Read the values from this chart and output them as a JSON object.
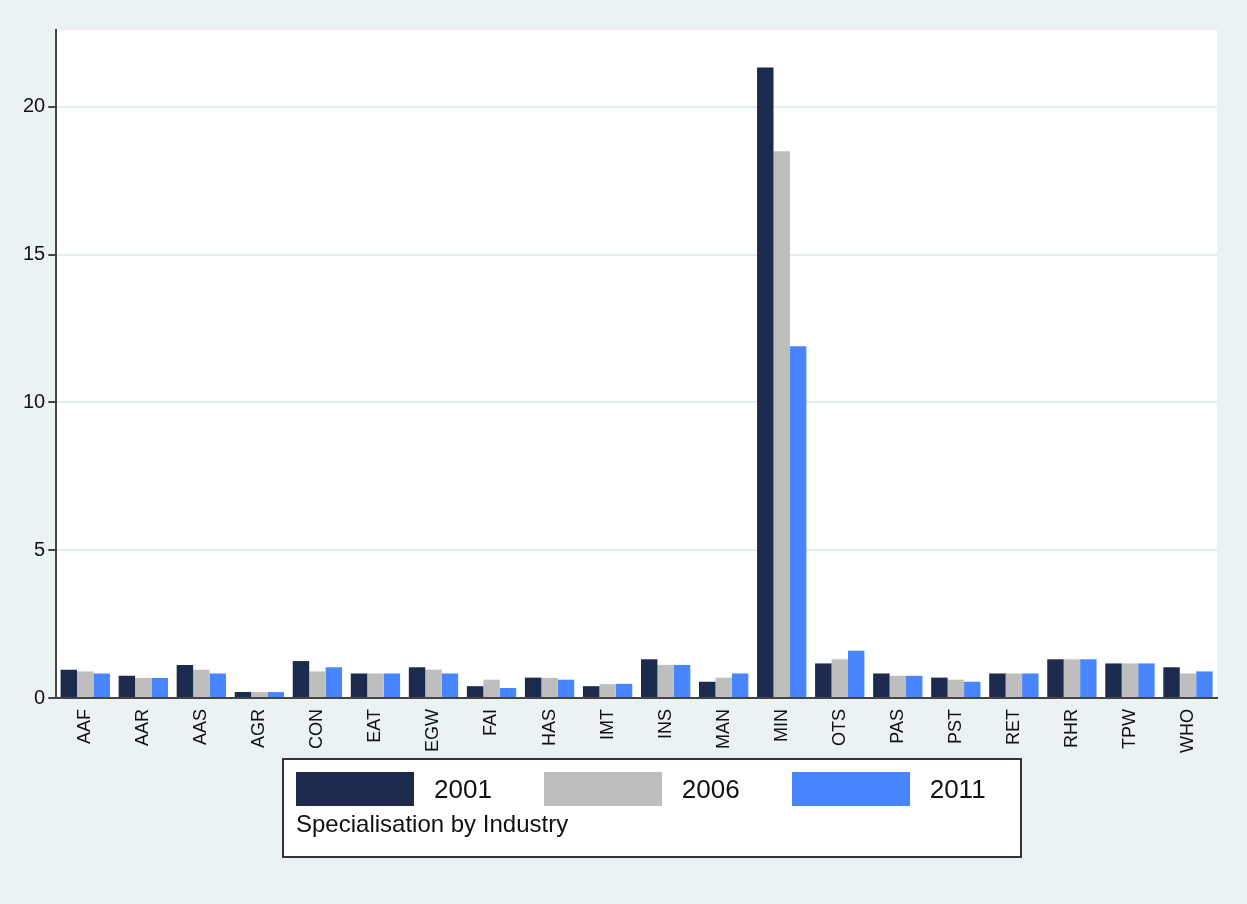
{
  "chart_data": {
    "type": "bar",
    "categories": [
      "AAF",
      "AAR",
      "AAS",
      "AGR",
      "CON",
      "EAT",
      "EGW",
      "FAI",
      "HAS",
      "IMT",
      "INS",
      "MAN",
      "MIN",
      "OTS",
      "PAS",
      "PST",
      "RET",
      "RHR",
      "TPW",
      "WHO"
    ],
    "series": [
      {
        "name": "2001",
        "color": "#1c2a4e",
        "values": [
          0.96,
          0.75,
          1.12,
          0.2,
          1.25,
          0.83,
          1.04,
          0.4,
          0.69,
          0.4,
          1.31,
          0.55,
          21.33,
          1.17,
          0.83,
          0.69,
          0.83,
          1.31,
          1.17,
          1.04
        ]
      },
      {
        "name": "2006",
        "color": "#bebebe",
        "values": [
          0.9,
          0.68,
          0.96,
          0.2,
          0.9,
          0.83,
          0.96,
          0.62,
          0.68,
          0.47,
          1.12,
          0.69,
          18.5,
          1.31,
          0.75,
          0.62,
          0.83,
          1.31,
          1.17,
          0.83
        ]
      },
      {
        "name": "2011",
        "color": "#4786ff",
        "values": [
          0.83,
          0.68,
          0.83,
          0.2,
          1.04,
          0.83,
          0.83,
          0.34,
          0.62,
          0.48,
          1.12,
          0.83,
          11.9,
          1.6,
          0.75,
          0.55,
          0.83,
          1.31,
          1.17,
          0.9
        ]
      }
    ],
    "ylim": [
      0,
      22.6
    ],
    "yticks": [
      0,
      5,
      10,
      15,
      20
    ],
    "grid": "y",
    "legend": "bottom",
    "legend_title": "Specialisation by Industry"
  }
}
